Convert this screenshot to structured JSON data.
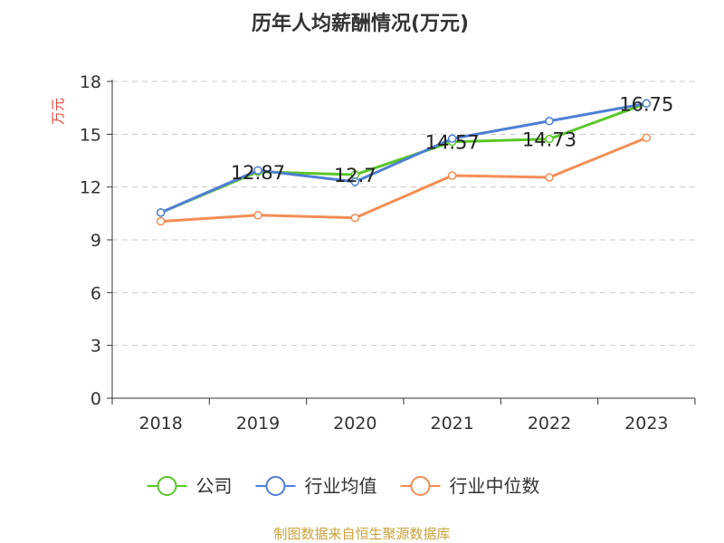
{
  "chart_data": {
    "type": "line",
    "title": "历年人均薪酬情况(万元)",
    "xlabel": "",
    "ylabel": "万元",
    "categories": [
      "2018",
      "2019",
      "2020",
      "2021",
      "2022",
      "2023"
    ],
    "ylim": [
      0,
      18
    ],
    "yticks": [
      0,
      3,
      6,
      9,
      12,
      15,
      18
    ],
    "grid": true,
    "legend_position": "bottom",
    "series": [
      {
        "name": "公司",
        "color": "#5ac629",
        "values": [
          10.55,
          12.87,
          12.7,
          14.57,
          14.73,
          16.75
        ],
        "labels": [
          "",
          "12.87",
          "12.7",
          "14.57",
          "14.73",
          "16.75"
        ]
      },
      {
        "name": "行业均值",
        "color": "#4e7fd6",
        "values": [
          10.55,
          12.95,
          12.3,
          14.75,
          15.75,
          16.75
        ],
        "labels": [
          "",
          "",
          "",
          "",
          "",
          ""
        ]
      },
      {
        "name": "行业中位数",
        "color": "#f48d55",
        "values": [
          10.05,
          10.4,
          10.25,
          12.65,
          12.55,
          14.8
        ],
        "labels": [
          "",
          "",
          "",
          "",
          "",
          ""
        ]
      }
    ]
  },
  "source": "制图数据来自恒生聚源数据库"
}
